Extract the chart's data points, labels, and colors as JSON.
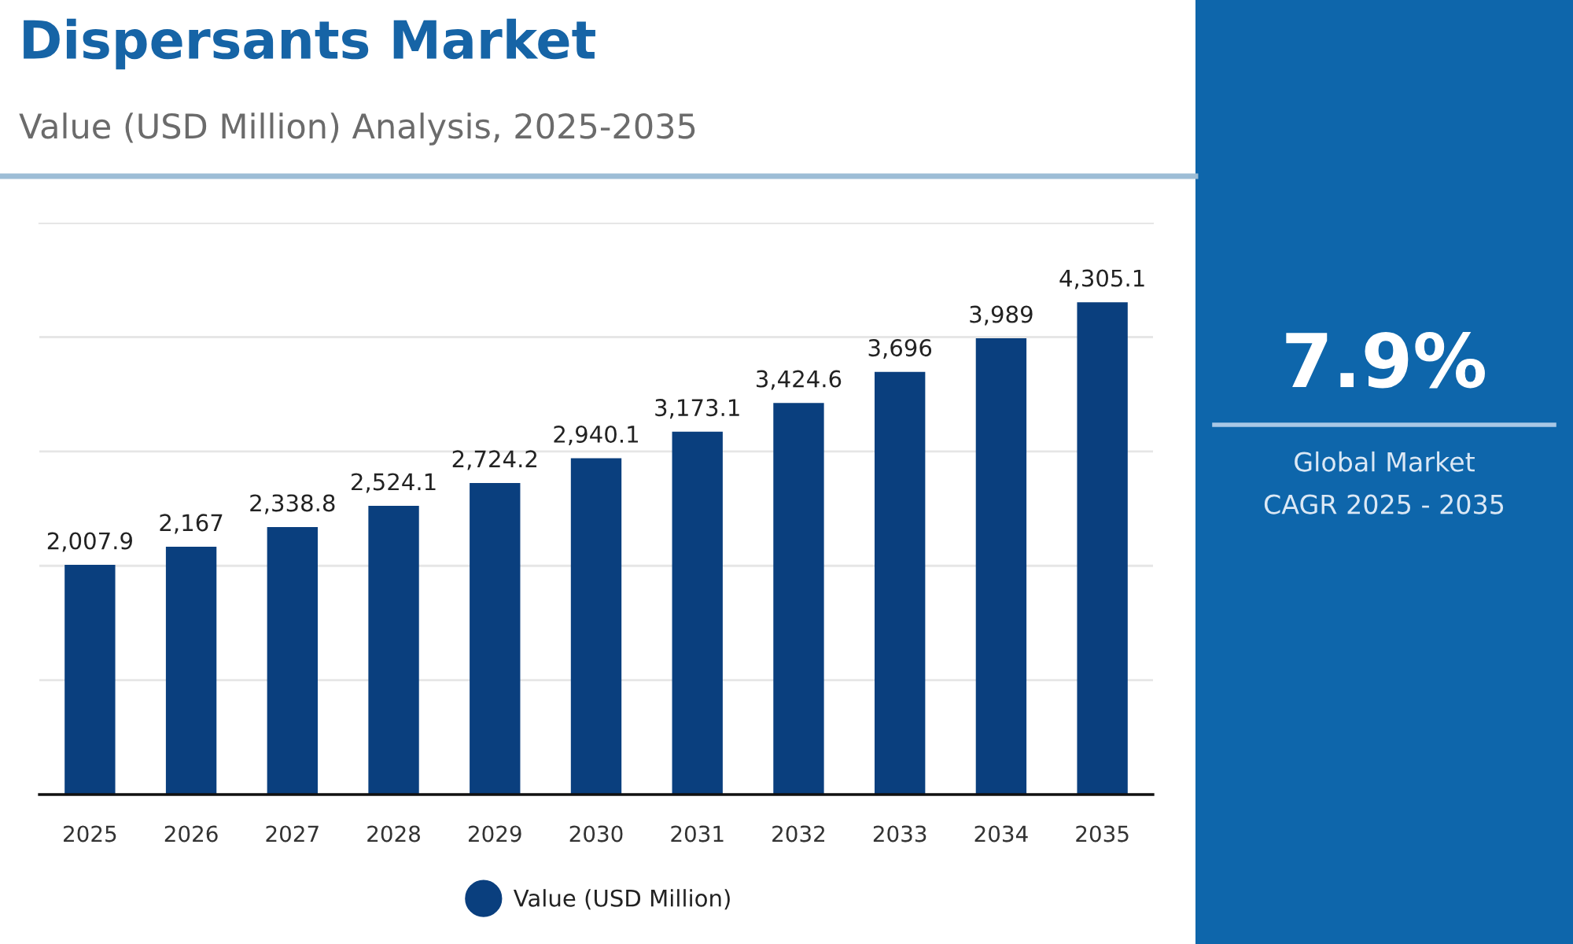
{
  "chart_data": [
    {
      "type": "bar",
      "title": "Dispersants Market",
      "subtitle": "Value (USD Million) Analysis, 2025-2035",
      "categories": [
        "2025",
        "2026",
        "2027",
        "2028",
        "2029",
        "2030",
        "2031",
        "2032",
        "2033",
        "2034",
        "2035"
      ],
      "series": [
        {
          "name": "Value (USD Million)",
          "color": "#0a3f7e",
          "values": [
            2007.9,
            2167,
            2338.8,
            2524.1,
            2724.2,
            2940.1,
            3173.1,
            3424.6,
            3696,
            3989,
            4305.1
          ],
          "value_labels": [
            "2,007.9",
            "2,167",
            "2,338.8",
            "2,524.1",
            "2,724.2",
            "2,940.1",
            "3,173.1",
            "3,424.6",
            "3,696",
            "3,989",
            "4,305.1"
          ]
        }
      ],
      "tick_labels": "x",
      "grid": "y",
      "legend": "bottom",
      "marker": "circle"
    },
    {
      "type": "other",
      "title": "7.9%",
      "annotations": [
        "Global Market",
        "CAGR 2025 - 2035"
      ]
    }
  ]
}
